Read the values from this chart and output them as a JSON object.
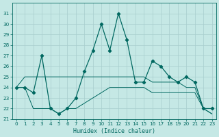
{
  "xlabel": "Humidex (Indice chaleur)",
  "bg_color": "#c5e8e5",
  "grid_color": "#a8cece",
  "line_color": "#006860",
  "xlim": [
    -0.5,
    23.5
  ],
  "ylim": [
    21,
    32
  ],
  "yticks": [
    21,
    22,
    23,
    24,
    25,
    26,
    27,
    28,
    29,
    30,
    31
  ],
  "xticks": [
    0,
    1,
    2,
    3,
    4,
    5,
    6,
    7,
    8,
    9,
    10,
    11,
    12,
    13,
    14,
    15,
    16,
    17,
    18,
    19,
    20,
    21,
    22,
    23
  ],
  "series": {
    "main": [
      24,
      24,
      23.5,
      27,
      22,
      21.5,
      22,
      23,
      25.5,
      27.5,
      30,
      27.5,
      31,
      28.5,
      24.5,
      24.5,
      26.5,
      26,
      25,
      24.5,
      25,
      24.5,
      22,
      22
    ],
    "min": [
      24,
      24,
      22,
      22,
      22,
      21.5,
      22,
      22,
      22.5,
      23,
      23.5,
      24,
      24,
      24,
      24,
      24,
      23.5,
      23.5,
      23.5,
      23.5,
      23.5,
      23.5,
      22,
      21.5
    ],
    "max": [
      24,
      25,
      25,
      25,
      25,
      25,
      25,
      25,
      25,
      25,
      25,
      25,
      25,
      25,
      25,
      25,
      24.5,
      24.5,
      24.5,
      24.5,
      24,
      24,
      22,
      21.5
    ]
  }
}
